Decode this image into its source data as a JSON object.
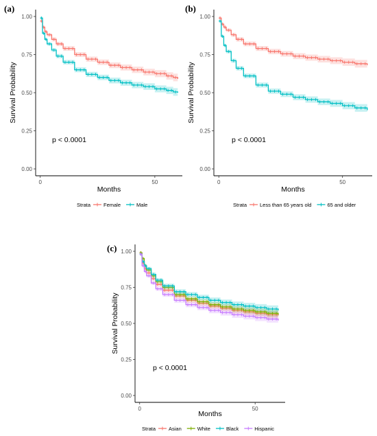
{
  "chart_data": [
    {
      "type": "line",
      "panel": "(a)",
      "xlabel": "Months",
      "ylabel": "Survival Probability",
      "xlim": [
        -2,
        62
      ],
      "ylim": [
        0,
        1
      ],
      "x_ticks": [
        0,
        50
      ],
      "y_ticks": [
        0,
        0.25,
        0.5,
        0.75,
        1.0
      ],
      "y_tick_labels": [
        "0.00",
        "0.25",
        "0.50",
        "0.75",
        "1.00"
      ],
      "annotation": "p < 0.0001",
      "legend_title": "Strata",
      "legend_position": "bottom",
      "grid": false,
      "series": [
        {
          "name": "Female",
          "color": "#F8766D",
          "x": [
            0,
            1,
            2,
            3,
            5,
            7,
            10,
            15,
            20,
            25,
            30,
            35,
            40,
            45,
            50,
            55,
            58,
            60
          ],
          "values": [
            0.97,
            0.93,
            0.9,
            0.88,
            0.85,
            0.82,
            0.79,
            0.75,
            0.72,
            0.7,
            0.68,
            0.665,
            0.65,
            0.635,
            0.625,
            0.61,
            0.6,
            0.59
          ]
        },
        {
          "name": "Male",
          "color": "#00BFC4",
          "x": [
            0,
            1,
            2,
            3,
            5,
            7,
            10,
            15,
            20,
            25,
            30,
            35,
            40,
            45,
            50,
            55,
            58,
            60
          ],
          "values": [
            0.99,
            0.89,
            0.85,
            0.82,
            0.78,
            0.74,
            0.7,
            0.65,
            0.62,
            0.6,
            0.58,
            0.565,
            0.55,
            0.54,
            0.525,
            0.515,
            0.505,
            0.5
          ]
        }
      ]
    },
    {
      "type": "line",
      "panel": "(b)",
      "xlabel": "Months",
      "ylabel": "Survival Probability",
      "xlim": [
        -2,
        62
      ],
      "ylim": [
        0,
        1
      ],
      "x_ticks": [
        0,
        50
      ],
      "y_ticks": [
        0,
        0.25,
        0.5,
        0.75,
        1.0
      ],
      "y_tick_labels": [
        "0.00",
        "0.25",
        "0.50",
        "0.75",
        "1.00"
      ],
      "annotation": "p < 0.0001",
      "legend_title": "Strata",
      "legend_position": "bottom",
      "grid": false,
      "series": [
        {
          "name": "Less than 65 years old",
          "color": "#F8766D",
          "x": [
            0,
            1,
            2,
            3,
            5,
            7,
            10,
            15,
            20,
            25,
            30,
            35,
            40,
            45,
            50,
            55,
            60
          ],
          "values": [
            0.99,
            0.95,
            0.93,
            0.91,
            0.88,
            0.85,
            0.82,
            0.79,
            0.77,
            0.755,
            0.74,
            0.73,
            0.72,
            0.71,
            0.7,
            0.69,
            0.68
          ]
        },
        {
          "name": "65 and older",
          "color": "#00BFC4",
          "x": [
            0,
            1,
            2,
            3,
            5,
            7,
            10,
            15,
            20,
            25,
            30,
            35,
            40,
            45,
            50,
            55,
            60
          ],
          "values": [
            0.97,
            0.87,
            0.81,
            0.77,
            0.71,
            0.66,
            0.61,
            0.55,
            0.51,
            0.49,
            0.47,
            0.455,
            0.44,
            0.43,
            0.415,
            0.4,
            0.385
          ]
        }
      ]
    },
    {
      "type": "line",
      "panel": "(c)",
      "xlabel": "Months",
      "ylabel": "Survival Probability",
      "xlim": [
        -2,
        63
      ],
      "ylim": [
        0,
        1
      ],
      "x_ticks": [
        0,
        50
      ],
      "y_ticks": [
        0,
        0.25,
        0.5,
        0.75,
        1.0
      ],
      "y_tick_labels": [
        "0.00",
        "0.25",
        "0.50",
        "0.75",
        "1.00"
      ],
      "annotation": "p < 0.0001",
      "legend_title": "Strata",
      "legend_position": "bottom",
      "grid": false,
      "series": [
        {
          "name": "Asian",
          "color": "#F8766D",
          "x": [
            0,
            1,
            2,
            3,
            5,
            7,
            10,
            15,
            20,
            25,
            30,
            35,
            40,
            45,
            50,
            55,
            60
          ],
          "values": [
            0.99,
            0.92,
            0.88,
            0.85,
            0.81,
            0.77,
            0.73,
            0.69,
            0.66,
            0.64,
            0.62,
            0.605,
            0.59,
            0.58,
            0.57,
            0.56,
            0.555
          ]
        },
        {
          "name": "White",
          "color": "#7CAE00",
          "x": [
            0,
            1,
            2,
            3,
            5,
            7,
            10,
            15,
            20,
            25,
            30,
            35,
            40,
            45,
            50,
            55,
            60
          ],
          "values": [
            0.99,
            0.95,
            0.9,
            0.87,
            0.83,
            0.79,
            0.75,
            0.7,
            0.67,
            0.65,
            0.63,
            0.615,
            0.6,
            0.59,
            0.58,
            0.57,
            0.56
          ]
        },
        {
          "name": "Black",
          "color": "#00BFC4",
          "x": [
            0,
            1,
            2,
            3,
            5,
            7,
            10,
            15,
            20,
            25,
            30,
            35,
            40,
            45,
            50,
            55,
            60
          ],
          "values": [
            0.98,
            0.93,
            0.9,
            0.88,
            0.84,
            0.8,
            0.76,
            0.72,
            0.7,
            0.68,
            0.66,
            0.645,
            0.63,
            0.62,
            0.61,
            0.6,
            0.59
          ]
        },
        {
          "name": "Hispanic",
          "color": "#C77CFF",
          "x": [
            0,
            1,
            2,
            3,
            5,
            7,
            10,
            15,
            20,
            25,
            30,
            35,
            40,
            45,
            50,
            55,
            60
          ],
          "values": [
            0.98,
            0.9,
            0.86,
            0.83,
            0.78,
            0.74,
            0.7,
            0.66,
            0.63,
            0.61,
            0.59,
            0.575,
            0.56,
            0.55,
            0.54,
            0.53,
            0.52
          ]
        }
      ]
    }
  ]
}
